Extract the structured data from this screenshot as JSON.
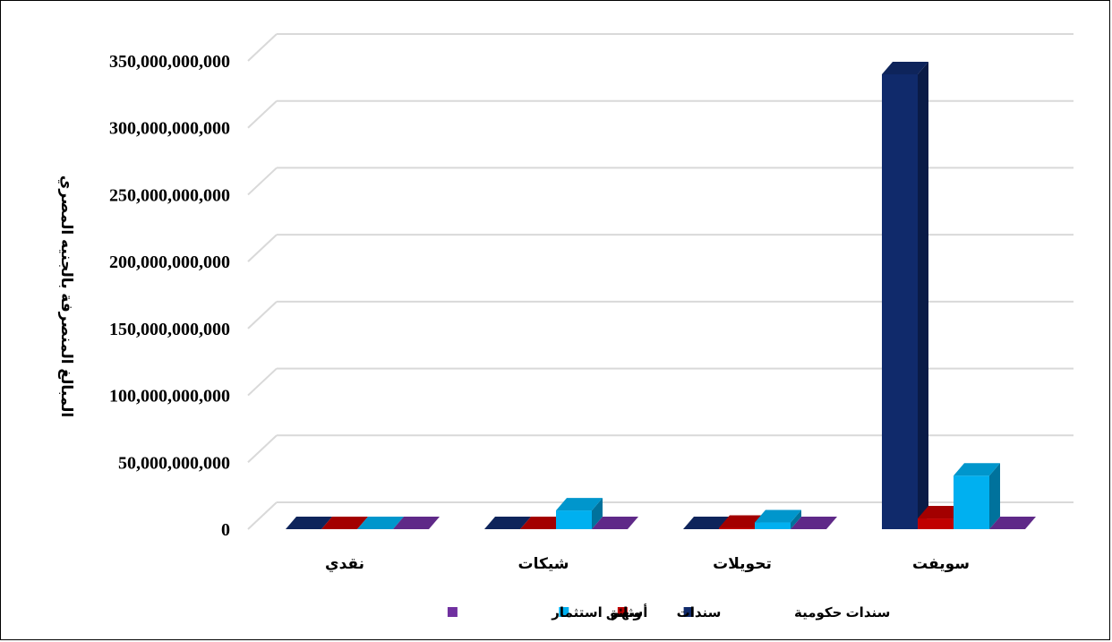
{
  "chart_data": {
    "type": "bar",
    "ylabel": "المبالغ المنصرفة بالجنيه المصري",
    "xlabel": "",
    "title": "",
    "categories": [
      "نقدي",
      "شيكات",
      "تحويلات",
      "سويفت"
    ],
    "y_ticks": [
      "0",
      "50,000,000,000",
      "100,000,000,000",
      "150,000,000,000",
      "200,000,000,000",
      "250,000,000,000",
      "300,000,000,000",
      "350,000,000,000"
    ],
    "ylim": [
      0,
      350000000000
    ],
    "grid": true,
    "legend_position": "bottom",
    "series": [
      {
        "name": "سندات حكومية",
        "color": "#102a6b",
        "values": [
          0,
          0,
          0,
          340000000000
        ]
      },
      {
        "name": "سندات",
        "color": "#c00000",
        "values": [
          0,
          0,
          1000000000,
          8000000000
        ]
      },
      {
        "name": "أسهم",
        "color": "#00b0f0",
        "values": [
          0,
          14000000000,
          5000000000,
          40000000000
        ]
      },
      {
        "name": "وثائق استثمار",
        "color": "#7030a0",
        "values": [
          0,
          0,
          0,
          0
        ]
      }
    ]
  }
}
